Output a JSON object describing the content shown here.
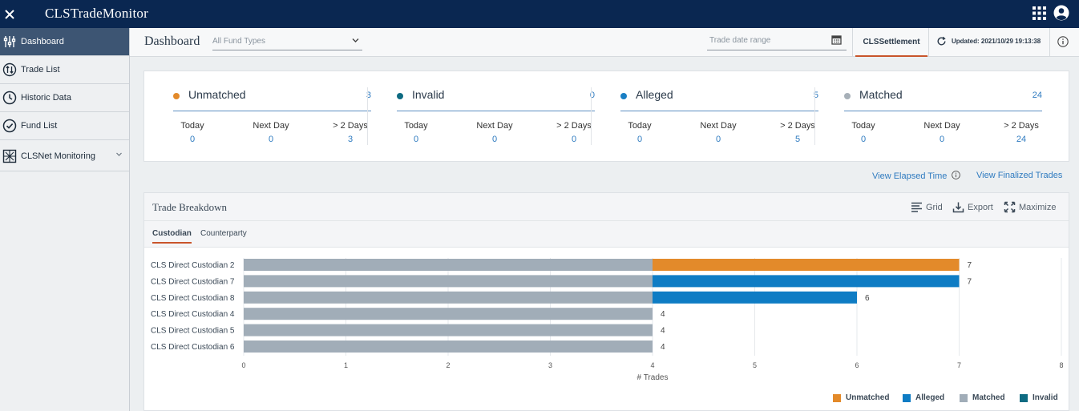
{
  "app": {
    "title": "CLSTradeMonitor"
  },
  "sidebar": {
    "items": [
      {
        "label": "Dashboard"
      },
      {
        "label": "Trade List"
      },
      {
        "label": "Historic Data"
      },
      {
        "label": "Fund List"
      },
      {
        "label": "CLSNet Monitoring"
      }
    ]
  },
  "header": {
    "title": "Dashboard",
    "fund_type_placeholder": "All Fund Types",
    "date_range_placeholder": "Trade date range",
    "tab_label": "CLSSettlement",
    "updated_text": "Updated: 2021/10/29 19:13:38"
  },
  "stats": [
    {
      "name": "Unmatched",
      "count": "3",
      "color": "#e38a2a",
      "today": "0",
      "next_day": "0",
      "gt2": "3"
    },
    {
      "name": "Invalid",
      "count": "0",
      "color": "#0e6b82",
      "today": "0",
      "next_day": "0",
      "gt2": "0"
    },
    {
      "name": "Alleged",
      "count": "5",
      "color": "#1a7fc4",
      "today": "0",
      "next_day": "0",
      "gt2": "5"
    },
    {
      "name": "Matched",
      "count": "24",
      "color": "#a7b0b8",
      "today": "0",
      "next_day": "0",
      "gt2": "24"
    }
  ],
  "stat_columns": {
    "today": "Today",
    "next_day": "Next Day",
    "gt2": "> 2 Days"
  },
  "links": {
    "elapsed": "View Elapsed Time",
    "finalized": "View Finalized Trades"
  },
  "panel": {
    "title": "Trade Breakdown",
    "grid": "Grid",
    "export": "Export",
    "maximize": "Maximize",
    "tabs": [
      "Custodian",
      "Counterparty"
    ]
  },
  "colors": {
    "unmatched": "#e38a2a",
    "alleged": "#0e7cc4",
    "matched": "#a1adb8",
    "invalid": "#0e6b82",
    "link": "#2f7bc0",
    "nav": "#0a2751"
  },
  "chart_data": {
    "type": "bar",
    "orientation": "horizontal",
    "stacked": true,
    "categories": [
      "CLS Direct Custodian 2",
      "CLS Direct Custodian 7",
      "CLS Direct Custodian 8",
      "CLS Direct Custodian 4",
      "CLS Direct Custodian 5",
      "CLS Direct Custodian 6"
    ],
    "series": [
      {
        "name": "Matched",
        "color": "#a1adb8",
        "values": [
          4,
          4,
          4,
          4,
          4,
          4
        ]
      },
      {
        "name": "Unmatched",
        "color": "#e38a2a",
        "values": [
          3,
          0,
          0,
          0,
          0,
          0
        ]
      },
      {
        "name": "Alleged",
        "color": "#0e7cc4",
        "values": [
          0,
          3,
          2,
          0,
          0,
          0
        ]
      },
      {
        "name": "Invalid",
        "color": "#0e6b82",
        "values": [
          0,
          0,
          0,
          0,
          0,
          0
        ]
      }
    ],
    "totals": [
      "7",
      "7",
      "6",
      "4",
      "4",
      "4"
    ],
    "xlabel": "# Trades",
    "xlim": [
      0,
      8
    ],
    "xticks": [
      "0",
      "1",
      "2",
      "3",
      "4",
      "5",
      "6",
      "7",
      "8"
    ],
    "grid": true,
    "legend": [
      "Unmatched",
      "Alleged",
      "Matched",
      "Invalid"
    ],
    "legend_position": "bottom-right"
  }
}
